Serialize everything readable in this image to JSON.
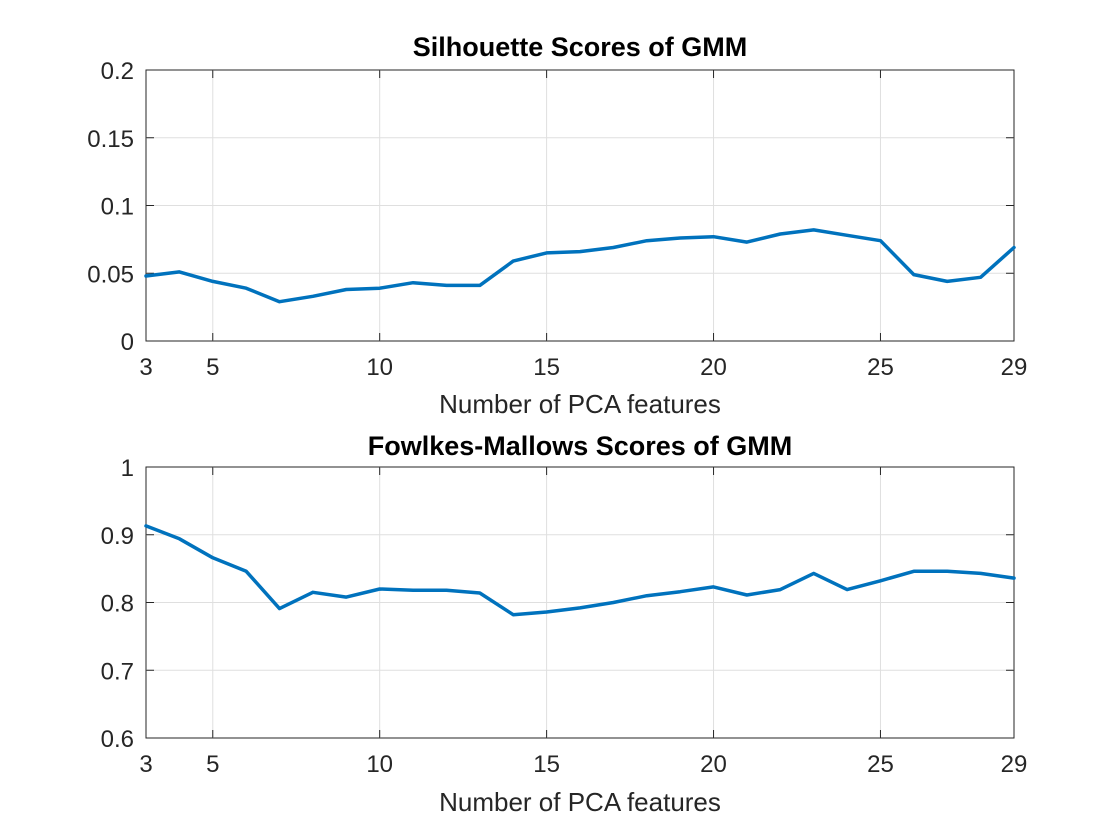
{
  "chart_data": [
    {
      "type": "line",
      "title": "Silhouette Scores of GMM",
      "xlabel": "Number of PCA features",
      "ylabel": "",
      "xlim": [
        3,
        29
      ],
      "ylim": [
        0,
        0.2
      ],
      "xticks": [
        3,
        5,
        10,
        15,
        20,
        25,
        29
      ],
      "yticks": [
        0,
        0.05,
        0.1,
        0.15,
        0.2
      ],
      "ytick_labels": [
        "0",
        "0.05",
        "0.1",
        "0.15",
        "0.2"
      ],
      "grid": true,
      "color": "#0072bd",
      "x": [
        3,
        4,
        5,
        6,
        7,
        8,
        9,
        10,
        11,
        12,
        13,
        14,
        15,
        16,
        17,
        18,
        19,
        20,
        21,
        22,
        23,
        24,
        25,
        26,
        27,
        28,
        29
      ],
      "y": [
        0.048,
        0.051,
        0.044,
        0.039,
        0.029,
        0.033,
        0.038,
        0.039,
        0.043,
        0.041,
        0.041,
        0.059,
        0.065,
        0.066,
        0.069,
        0.074,
        0.076,
        0.077,
        0.073,
        0.079,
        0.082,
        0.078,
        0.074,
        0.049,
        0.044,
        0.047,
        0.069
      ]
    },
    {
      "type": "line",
      "title": "Fowlkes-Mallows Scores of GMM",
      "xlabel": "Number of PCA features",
      "ylabel": "",
      "xlim": [
        3,
        29
      ],
      "ylim": [
        0.6,
        1
      ],
      "xticks": [
        3,
        5,
        10,
        15,
        20,
        25,
        29
      ],
      "yticks": [
        0.6,
        0.7,
        0.8,
        0.9,
        1
      ],
      "ytick_labels": [
        "0.6",
        "0.7",
        "0.8",
        "0.9",
        "1"
      ],
      "grid": true,
      "color": "#0072bd",
      "x": [
        3,
        4,
        5,
        6,
        7,
        8,
        9,
        10,
        11,
        12,
        13,
        14,
        15,
        16,
        17,
        18,
        19,
        20,
        21,
        22,
        23,
        24,
        25,
        26,
        27,
        28,
        29
      ],
      "y": [
        0.913,
        0.894,
        0.866,
        0.846,
        0.791,
        0.815,
        0.808,
        0.82,
        0.818,
        0.818,
        0.814,
        0.782,
        0.786,
        0.792,
        0.8,
        0.81,
        0.816,
        0.823,
        0.811,
        0.819,
        0.843,
        0.819,
        0.832,
        0.846,
        0.846,
        0.843,
        0.836
      ]
    }
  ]
}
